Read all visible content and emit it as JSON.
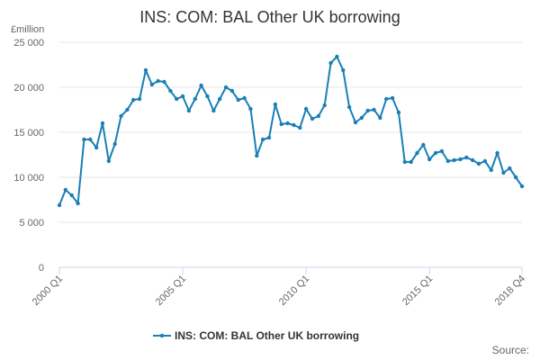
{
  "chart_data": {
    "type": "line",
    "title": "INS: COM: BAL Other UK borrowing",
    "unit_label": "£million",
    "ylim": [
      0,
      25000
    ],
    "yticks": [
      0,
      5000,
      10000,
      15000,
      20000,
      25000
    ],
    "ytick_labels": [
      "0",
      "5 000",
      "10 000",
      "15 000",
      "20 000",
      "25 000"
    ],
    "xtick_labels": [
      "2000 Q1",
      "2005 Q1",
      "2010 Q1",
      "2015 Q1",
      "2018 Q4"
    ],
    "grid": true,
    "legend_position": "bottom",
    "x_start": "2000 Q1",
    "x_end": "2018 Q4",
    "series": [
      {
        "name": "INS: COM: BAL Other UK borrowing",
        "color": "#1a7fb5",
        "values": [
          6900,
          8600,
          8000,
          7100,
          14200,
          14200,
          13300,
          16000,
          11800,
          13700,
          16800,
          17500,
          18600,
          18700,
          21900,
          20300,
          20700,
          20600,
          19600,
          18700,
          19000,
          17400,
          18700,
          20200,
          19000,
          17400,
          18700,
          20000,
          19600,
          18600,
          18800,
          17600,
          12400,
          14200,
          14400,
          18100,
          15900,
          16000,
          15800,
          15500,
          17600,
          16500,
          16800,
          18000,
          22700,
          23400,
          21900,
          17800,
          16100,
          16600,
          17400,
          17500,
          16600,
          18700,
          18800,
          17200,
          11700,
          11700,
          12700,
          13600,
          12000,
          12700,
          12900,
          11800,
          11900,
          12000,
          12200,
          11900,
          11500,
          11800,
          10800,
          12700,
          10500,
          11000,
          10000,
          9000
        ]
      }
    ]
  },
  "footer": {
    "source_label": "Source:"
  }
}
